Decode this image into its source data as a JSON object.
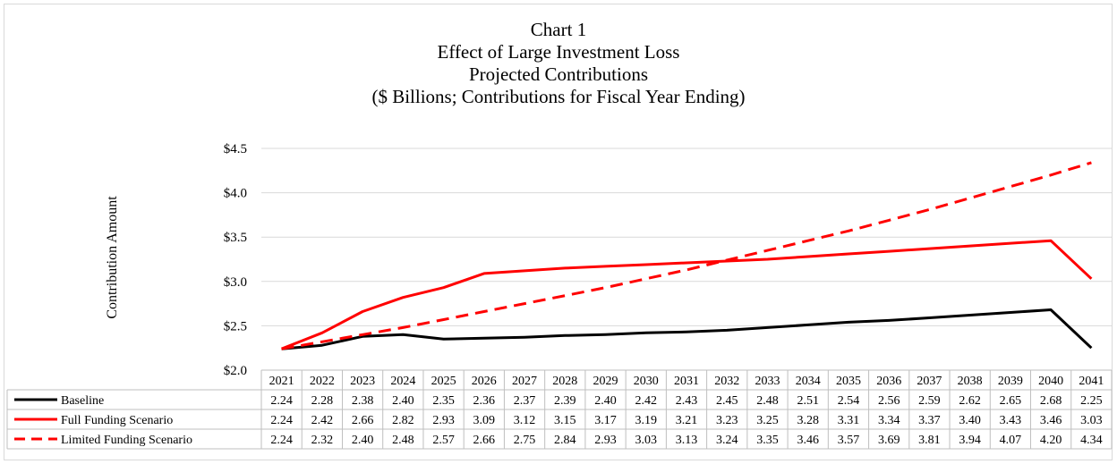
{
  "chart_data": {
    "type": "line",
    "title": [
      "Chart 1",
      "Effect of Large Investment Loss",
      "Projected Contributions",
      "($ Billions; Contributions for Fiscal Year Ending)"
    ],
    "ylabel": "Contribution Amount",
    "xlabel": "",
    "ylim": [
      2.0,
      4.5
    ],
    "yticks": [
      "$2.0",
      "$2.5",
      "$3.0",
      "$3.5",
      "$4.0",
      "$4.5"
    ],
    "grid": true,
    "legend": "data-table",
    "x": [
      "2021",
      "2022",
      "2023",
      "2024",
      "2025",
      "2026",
      "2027",
      "2028",
      "2029",
      "2030",
      "2031",
      "2032",
      "2033",
      "2034",
      "2035",
      "2036",
      "2037",
      "2038",
      "2039",
      "2040",
      "2041"
    ],
    "series": [
      {
        "name": "Baseline",
        "color": "#000000",
        "dash": false,
        "values": [
          "2.24",
          "2.28",
          "2.38",
          "2.40",
          "2.35",
          "2.36",
          "2.37",
          "2.39",
          "2.40",
          "2.42",
          "2.43",
          "2.45",
          "2.48",
          "2.51",
          "2.54",
          "2.56",
          "2.59",
          "2.62",
          "2.65",
          "2.68",
          "2.25"
        ]
      },
      {
        "name": "Full Funding Scenario",
        "color": "#ff0000",
        "dash": false,
        "values": [
          "2.24",
          "2.42",
          "2.66",
          "2.82",
          "2.93",
          "3.09",
          "3.12",
          "3.15",
          "3.17",
          "3.19",
          "3.21",
          "3.23",
          "3.25",
          "3.28",
          "3.31",
          "3.34",
          "3.37",
          "3.40",
          "3.43",
          "3.46",
          "3.03"
        ]
      },
      {
        "name": "Limited Funding Scenario",
        "color": "#ff0000",
        "dash": true,
        "values": [
          "2.24",
          "2.32",
          "2.40",
          "2.48",
          "2.57",
          "2.66",
          "2.75",
          "2.84",
          "2.93",
          "3.03",
          "3.13",
          "3.24",
          "3.35",
          "3.46",
          "3.57",
          "3.69",
          "3.81",
          "3.94",
          "4.07",
          "4.20",
          "4.34"
        ]
      }
    ]
  }
}
